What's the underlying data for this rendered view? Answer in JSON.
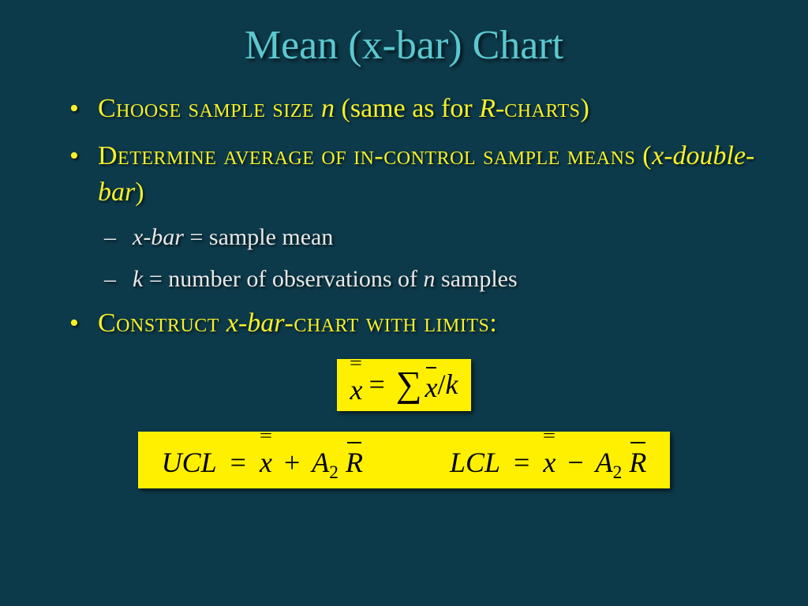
{
  "slide": {
    "title": "Mean (x-bar) Chart",
    "title_color": "#5bc8d0",
    "title_fontsize": 52,
    "background_color": "#0d3a4a",
    "body_color_primary": "#f5f02a",
    "body_color_secondary": "#e8e8e8",
    "bullet_fontsize": 34,
    "sub_bullet_fontsize": 30,
    "formula_bg": "#fff000",
    "formula_text": "#000000",
    "formula_fontsize": 36,
    "bullets": [
      {
        "segments": {
          "a": "Choose sample size ",
          "b": "n ",
          "c": "(same as for ",
          "d": "R-",
          "e": "charts)"
        }
      },
      {
        "segments": {
          "a": "Determine average of in-control sample means (",
          "b": "x-double-bar",
          "c": ")"
        },
        "subs": [
          {
            "a": "x-bar",
            "b": " = sample mean"
          },
          {
            "a": "k",
            "b": " = number of observations of ",
            "c": "n",
            "d": " samples"
          }
        ]
      },
      {
        "segments": {
          "a": "Construct ",
          "b": "x-bar",
          "c": "-chart with limits:"
        }
      }
    ],
    "formulas": {
      "f1": {
        "lhs_var": "x",
        "sum": "∑",
        "rhs_var": "x",
        "div": " / ",
        "k": "k",
        "eq": "="
      },
      "f2": {
        "ucl_label": "UCL",
        "eq": "=",
        "xvar": "x",
        "plus": "+",
        "A": "A",
        "sub2": "2",
        "R": "R"
      },
      "f3": {
        "lcl_label": "LCL",
        "eq": "=",
        "xvar": "x",
        "minus": "−",
        "A": "A",
        "sub2": "2",
        "R": "R"
      }
    }
  }
}
